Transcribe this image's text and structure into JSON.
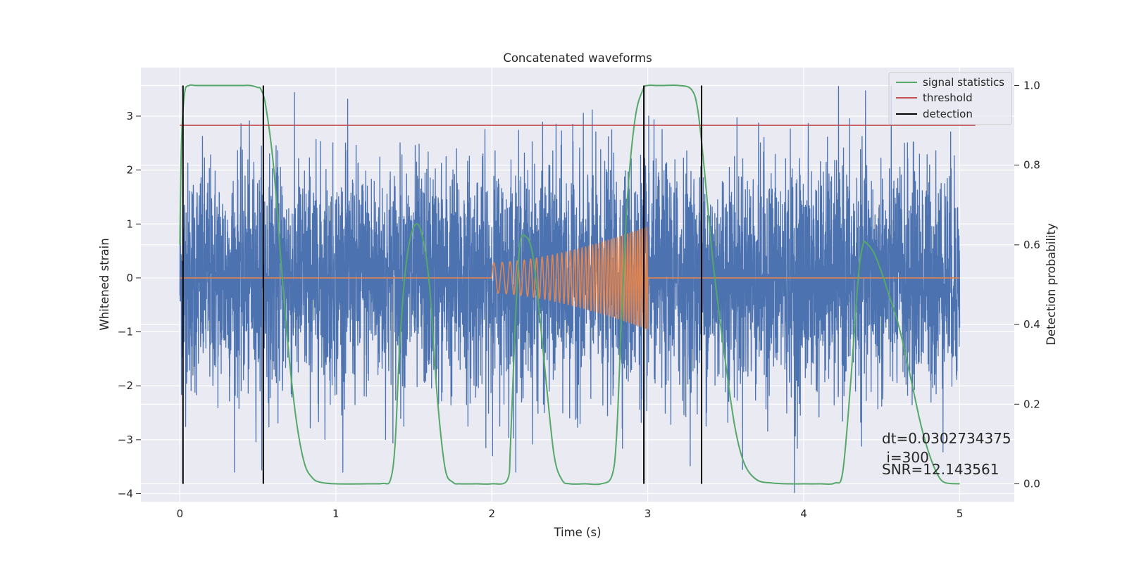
{
  "chart_data": {
    "type": "line",
    "title": "Concatenated waveforms",
    "xlabel": "Time (s)",
    "ylabel": "Whitened strain",
    "ylabel_right": "Detection probability",
    "xlim": [
      -0.25,
      5.35
    ],
    "ylim": [
      -4.15,
      3.9
    ],
    "ylim_right": [
      -0.045,
      1.045
    ],
    "x_ticks": [
      0,
      1,
      2,
      3,
      4,
      5
    ],
    "x_tick_labels": [
      "0",
      "1",
      "2",
      "3",
      "4",
      "5"
    ],
    "y_ticks": [
      -4,
      -3,
      -2,
      -1,
      0,
      1,
      2,
      3
    ],
    "y_tick_labels": [
      "−4",
      "−3",
      "−2",
      "−1",
      "0",
      "1",
      "2",
      "3"
    ],
    "y_right_ticks": [
      0.0,
      0.2,
      0.4,
      0.6,
      0.8,
      1.0
    ],
    "y_right_tick_labels": [
      "0.0",
      "0.2",
      "0.4",
      "0.6",
      "0.8",
      "1.0"
    ],
    "grid": true,
    "legend_position": "top-right",
    "colors": {
      "background": "#eaeaf2",
      "grid": "#ffffff",
      "strain": "#4c72b0",
      "injected": "#dd8452",
      "signal_statistics": "#55a868",
      "threshold": "#c44e52",
      "detection": "#000000"
    },
    "series": [
      {
        "name": "",
        "role": "whitened strain noise",
        "axis": "left",
        "x_range": [
          0,
          5
        ],
        "amplitude_peak_range": [
          -4,
          3.6
        ]
      },
      {
        "name": "",
        "role": "injected chirp waveform",
        "axis": "left",
        "x_range": [
          2.0,
          3.0
        ],
        "start_amplitude": 0.28,
        "end_amplitude": 0.95,
        "start_frequency_hz": 18,
        "end_frequency_hz": 70
      },
      {
        "name": "signal statistics",
        "axis": "right",
        "x": [
          0.0,
          0.01,
          0.03,
          0.06,
          0.1,
          0.2,
          0.3,
          0.4,
          0.45,
          0.5,
          0.52,
          0.55,
          0.6,
          0.65,
          0.7,
          0.75,
          0.8,
          0.85,
          0.9,
          1.0,
          1.2,
          1.3,
          1.35,
          1.38,
          1.41,
          1.45,
          1.5,
          1.55,
          1.6,
          1.65,
          1.7,
          1.75,
          1.8,
          1.9,
          2.0,
          2.1,
          2.12,
          2.15,
          2.18,
          2.22,
          2.26,
          2.3,
          2.35,
          2.4,
          2.45,
          2.5,
          2.6,
          2.7,
          2.77,
          2.8,
          2.83,
          2.87,
          2.92,
          2.97,
          3.0,
          3.05,
          3.1,
          3.2,
          3.28,
          3.32,
          3.36,
          3.42,
          3.5,
          3.56,
          3.62,
          3.7,
          3.8,
          3.9,
          4.0,
          4.1,
          4.2,
          4.25,
          4.3,
          4.35,
          4.38,
          4.4,
          4.45,
          4.5,
          4.55,
          4.6,
          4.65,
          4.7,
          4.75,
          4.8,
          4.85,
          4.9,
          5.0
        ],
        "y": [
          0.6,
          0.85,
          0.98,
          1.0,
          1.0,
          1.0,
          1.0,
          1.0,
          1.0,
          0.995,
          0.99,
          0.95,
          0.8,
          0.55,
          0.32,
          0.15,
          0.05,
          0.015,
          0.004,
          0.0,
          0.0,
          0.001,
          0.01,
          0.1,
          0.35,
          0.55,
          0.645,
          0.63,
          0.5,
          0.22,
          0.04,
          0.004,
          0.0,
          0.0,
          0.0,
          0.01,
          0.1,
          0.4,
          0.6,
          0.62,
          0.58,
          0.45,
          0.25,
          0.07,
          0.01,
          0.0,
          0.0,
          0.0,
          0.02,
          0.12,
          0.4,
          0.72,
          0.92,
          0.99,
          1.0,
          1.0,
          1.0,
          1.0,
          0.99,
          0.94,
          0.8,
          0.55,
          0.3,
          0.14,
          0.05,
          0.01,
          0.002,
          0.0,
          0.0,
          0.0,
          0.002,
          0.03,
          0.25,
          0.52,
          0.6,
          0.605,
          0.58,
          0.53,
          0.47,
          0.41,
          0.33,
          0.24,
          0.15,
          0.08,
          0.03,
          0.004,
          0.0
        ]
      },
      {
        "name": "threshold",
        "axis": "right",
        "x": [
          0,
          5.1
        ],
        "y": [
          0.9,
          0.9
        ]
      },
      {
        "name": "detection",
        "axis": "right",
        "x": [
          0.02,
          0.535,
          2.975,
          3.345
        ],
        "y_range": [
          0.0,
          1.0
        ]
      }
    ],
    "annotations": [
      "dt=0.0302734375",
      " i=300",
      "SNR=12.143561"
    ]
  }
}
